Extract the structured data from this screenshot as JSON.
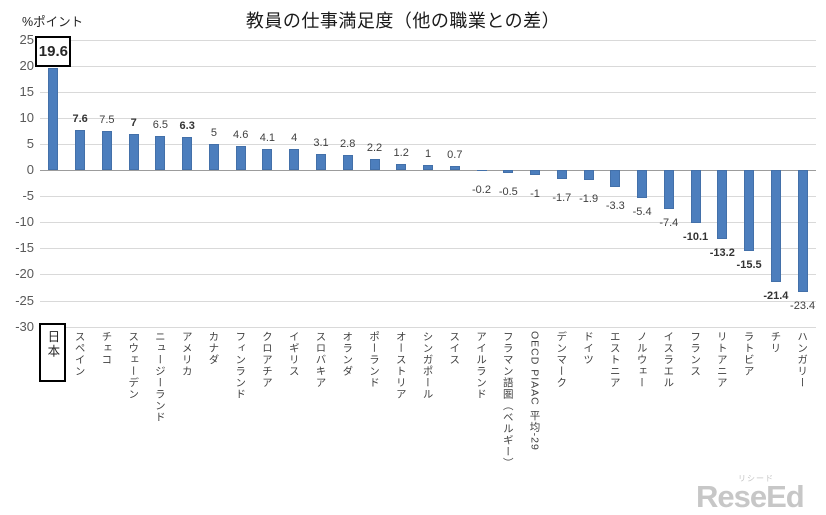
{
  "chart_data": {
    "type": "bar",
    "title": "教員の仕事満足度（他の職業との差）",
    "unit_label": "%ポイント",
    "ylim": [
      -30,
      25
    ],
    "yticks": [
      25,
      20,
      15,
      10,
      5,
      0,
      -5,
      -10,
      -15,
      -20,
      -25,
      -30
    ],
    "grid": true,
    "legend": "none",
    "bar_color": "#4C7EBD",
    "categories": [
      "日本",
      "スペイン",
      "チェコ",
      "スウェーデン",
      "ニュージーランド",
      "アメリカ",
      "カナダ",
      "フィンランド",
      "クロアチア",
      "イギリス",
      "スロバキア",
      "オランダ",
      "ポーランド",
      "オーストリア",
      "シンガポール",
      "スイス",
      "アイルランド",
      "フラマン語圏（ベルギー）",
      "OECD PIAAC 平均-29",
      "デンマーク",
      "ドイツ",
      "エストニア",
      "ノルウェー",
      "イスラエル",
      "フランス",
      "リトアニア",
      "ラトビア",
      "チリ",
      "ハンガリー"
    ],
    "values": [
      19.6,
      7.6,
      7.5,
      7,
      6.5,
      6.3,
      5,
      4.6,
      4.1,
      4,
      3.1,
      2.8,
      2.2,
      1.2,
      1,
      0.7,
      -0.2,
      -0.5,
      -1,
      -1.7,
      -1.9,
      -3.3,
      -5.4,
      -7.4,
      -10.1,
      -13.2,
      -15.5,
      -21.4,
      -23.4
    ],
    "emphasized_indices": [
      0,
      1,
      3,
      5,
      24,
      25,
      26,
      27
    ],
    "highlight_index": 0,
    "highlight_category": "日本",
    "highlight_value": 19.6
  },
  "watermark": {
    "ruby": "リシード",
    "text": "ReseEd"
  },
  "colors": {
    "bar": "#4C7EBD",
    "grid": "#D9D9D9",
    "zero_line": "#9C9C9C",
    "tick_text": "#595959",
    "label_text": "#3F3F3F",
    "title_text": "#1A1A1A",
    "watermark": "#C7C7C7",
    "highlight_border": "#000000"
  }
}
